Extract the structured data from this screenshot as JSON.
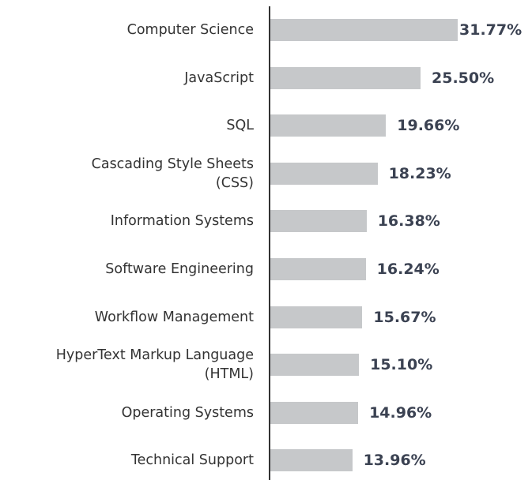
{
  "chart_data": {
    "type": "bar",
    "orientation": "horizontal",
    "categories": [
      "Computer Science",
      "JavaScript",
      "SQL",
      "Cascading Style Sheets\n(CSS)",
      "Information Systems",
      "Software Engineering",
      "Workflow Management",
      "HyperText Markup Language\n(HTML)",
      "Operating Systems",
      "Technical Support"
    ],
    "values": [
      31.77,
      25.5,
      19.66,
      18.23,
      16.38,
      16.24,
      15.67,
      15.1,
      14.96,
      13.96
    ],
    "value_labels": [
      "31.77%",
      "25.50%",
      "19.66%",
      "18.23%",
      "16.38%",
      "16.24%",
      "15.67%",
      "15.10%",
      "14.96%",
      "13.96%"
    ],
    "color": "#c6c8ca"
  }
}
